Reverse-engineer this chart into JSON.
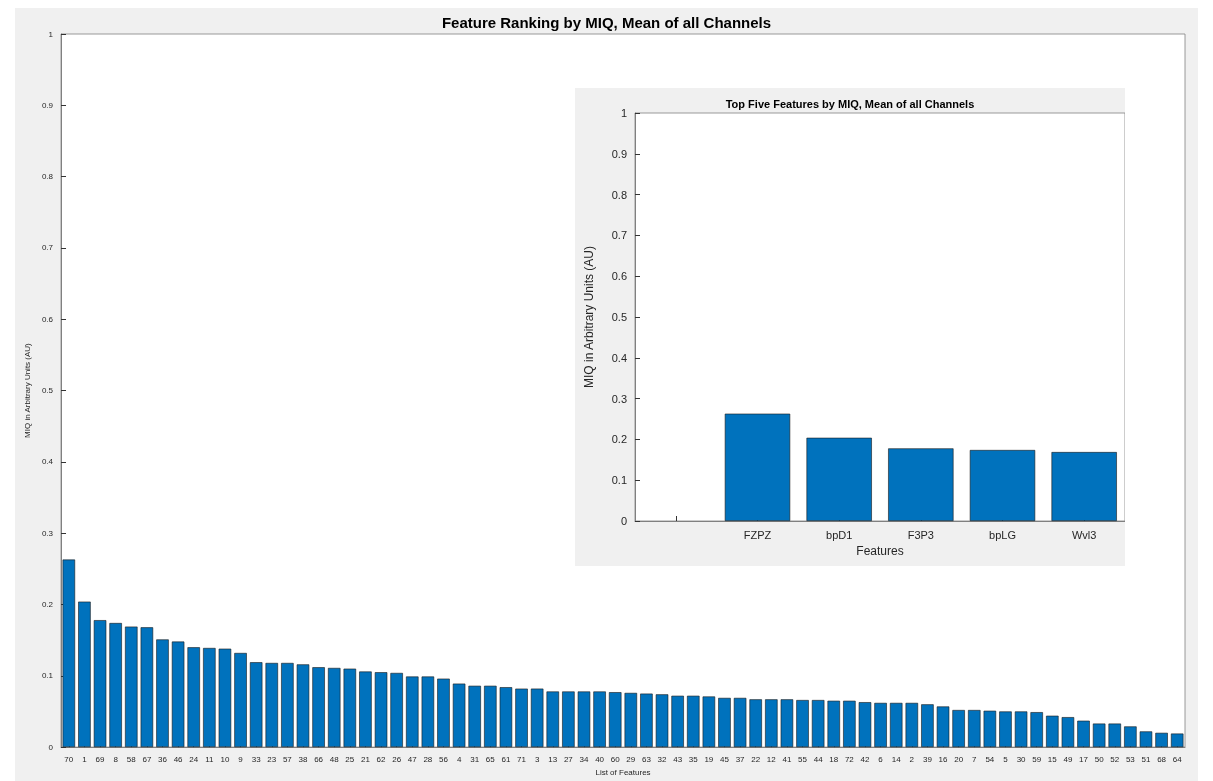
{
  "chart_data": [
    {
      "type": "bar",
      "title": "Feature Ranking by MIQ, Mean of all Channels",
      "xlabel": "List of Features",
      "ylabel": "MIQ in Arbitrary Units (AU)",
      "categories": [
        "70",
        "1",
        "69",
        "8",
        "58",
        "67",
        "36",
        "46",
        "24",
        "11",
        "10",
        "9",
        "33",
        "23",
        "57",
        "38",
        "66",
        "48",
        "25",
        "21",
        "62",
        "26",
        "47",
        "28",
        "56",
        "4",
        "31",
        "65",
        "61",
        "71",
        "3",
        "13",
        "27",
        "34",
        "40",
        "60",
        "29",
        "63",
        "32",
        "43",
        "35",
        "19",
        "45",
        "37",
        "22",
        "12",
        "41",
        "55",
        "44",
        "18",
        "72",
        "42",
        "6",
        "14",
        "2",
        "39",
        "16",
        "20",
        "7",
        "54",
        "5",
        "30",
        "59",
        "15",
        "49",
        "17",
        "50",
        "52",
        "53",
        "51",
        "68",
        "64"
      ],
      "values": [
        0.263,
        0.204,
        0.178,
        0.174,
        0.169,
        0.168,
        0.151,
        0.148,
        0.14,
        0.139,
        0.138,
        0.132,
        0.119,
        0.118,
        0.118,
        0.116,
        0.112,
        0.111,
        0.11,
        0.106,
        0.105,
        0.104,
        0.099,
        0.099,
        0.096,
        0.089,
        0.086,
        0.086,
        0.084,
        0.082,
        0.082,
        0.078,
        0.078,
        0.078,
        0.078,
        0.077,
        0.076,
        0.075,
        0.074,
        0.072,
        0.072,
        0.071,
        0.069,
        0.069,
        0.067,
        0.067,
        0.067,
        0.066,
        0.066,
        0.065,
        0.065,
        0.063,
        0.062,
        0.062,
        0.062,
        0.06,
        0.057,
        0.052,
        0.052,
        0.051,
        0.05,
        0.05,
        0.049,
        0.044,
        0.042,
        0.037,
        0.033,
        0.033,
        0.029,
        0.022,
        0.02,
        0.019
      ],
      "color": "#0072bd",
      "ylim": [
        0,
        1
      ],
      "yticks": [
        0,
        0.1,
        0.2,
        0.3,
        0.4,
        0.5,
        0.6,
        0.7,
        0.8,
        0.9,
        1
      ]
    },
    {
      "type": "bar",
      "title": "Top Five Features by MIQ, Mean of all Channels",
      "xlabel": "Features",
      "ylabel": "MIQ in Arbitrary Units (AU)",
      "categories": [
        null,
        "FZPZ",
        "bpD1",
        "F3P3",
        "bpLG",
        "Wvl3"
      ],
      "values": [
        null,
        0.263,
        0.204,
        0.178,
        0.174,
        0.169
      ],
      "color": "#0072bd",
      "ylim": [
        0,
        1
      ],
      "yticks": [
        0,
        0.1,
        0.2,
        0.3,
        0.4,
        0.5,
        0.6,
        0.7,
        0.8,
        0.9,
        1
      ]
    }
  ]
}
